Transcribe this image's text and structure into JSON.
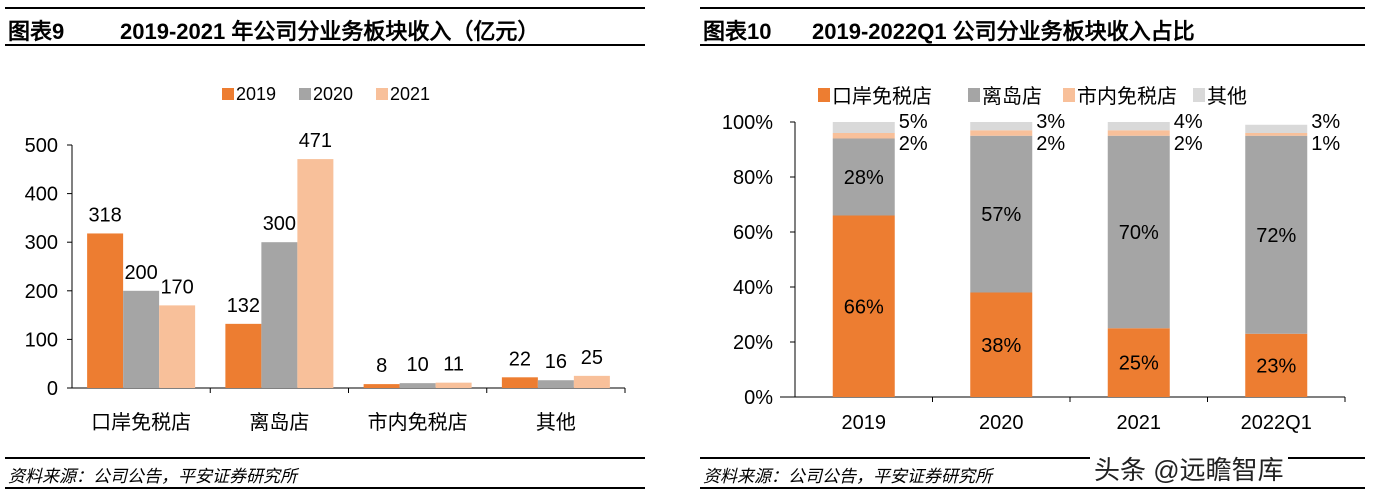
{
  "left": {
    "fig_label": "图表9",
    "title": "2019-2021 年公司分业务板块收入（亿元）",
    "source": "资料来源：公司公告，平安证券研究所"
  },
  "right": {
    "fig_label": "图表10",
    "title": "2019-2022Q1 公司分业务板块收入占比",
    "source": "资料来源：公司公告，平安证券研究所"
  },
  "watermark": "头条 @远瞻智库",
  "chart_data": [
    {
      "type": "bar",
      "categories": [
        "口岸免税店",
        "离岛店",
        "市内免税店",
        "其他"
      ],
      "series": [
        {
          "name": "2019",
          "values": [
            318,
            132,
            8,
            22
          ],
          "color": "#ED7D31"
        },
        {
          "name": "2020",
          "values": [
            200,
            300,
            10,
            16
          ],
          "color": "#A5A5A5"
        },
        {
          "name": "2021",
          "values": [
            170,
            471,
            11,
            25
          ],
          "color": "#F8C09A"
        }
      ],
      "ylim": [
        0,
        500
      ],
      "yticks": [
        0,
        100,
        200,
        300,
        400,
        500
      ],
      "legend": "top",
      "grid": false
    },
    {
      "type": "stacked-bar",
      "categories": [
        "2019",
        "2020",
        "2021",
        "2022Q1"
      ],
      "series": [
        {
          "name": "口岸免税店",
          "values": [
            66,
            38,
            25,
            23
          ],
          "color": "#ED7D31"
        },
        {
          "name": "离岛店",
          "values": [
            28,
            57,
            70,
            72
          ],
          "color": "#A5A5A5"
        },
        {
          "name": "市内免税店",
          "values": [
            2,
            2,
            2,
            1
          ],
          "color": "#F8C09A"
        },
        {
          "name": "其他",
          "values": [
            5,
            3,
            4,
            3
          ],
          "color": "#D9D9D9"
        }
      ],
      "ylim": [
        0,
        100
      ],
      "yticks": [
        "0%",
        "20%",
        "40%",
        "60%",
        "80%",
        "100%"
      ],
      "legend": "top",
      "grid": false
    }
  ]
}
